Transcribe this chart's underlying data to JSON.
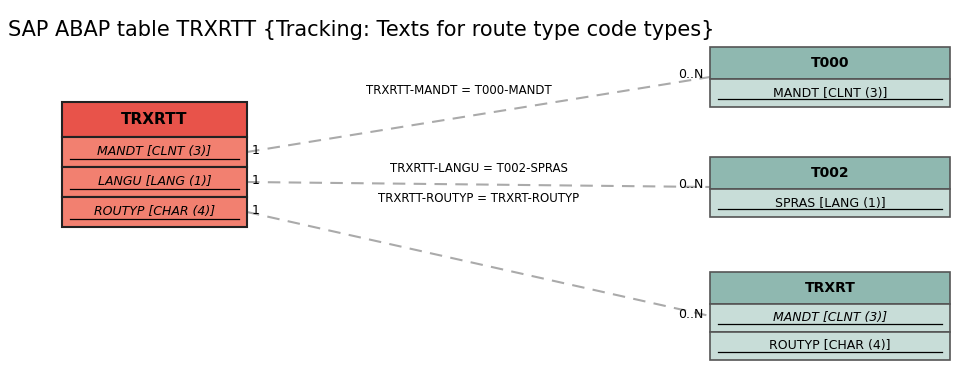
{
  "title": "SAP ABAP table TRXRTT {Tracking: Texts for route type code types}",
  "title_fontsize": 15,
  "background_color": "#ffffff",
  "left_table": {
    "name": "TRXRTT",
    "header_color": "#e8534a",
    "field_bg": "#f28070",
    "fields": [
      {
        "text": "MANDT [CLNT (3)]",
        "italic": true,
        "underline": true
      },
      {
        "text": "LANGU [LANG (1)]",
        "italic": true,
        "underline": true
      },
      {
        "text": "ROUTYP [CHAR (4)]",
        "italic": true,
        "underline": true
      }
    ]
  },
  "right_tables": [
    {
      "name": "T000",
      "header_color": "#8fb8b0",
      "field_bg": "#c8ddd8",
      "fields": [
        {
          "text": "MANDT [CLNT (3)]",
          "italic": false,
          "underline": true
        }
      ]
    },
    {
      "name": "T002",
      "header_color": "#8fb8b0",
      "field_bg": "#c8ddd8",
      "fields": [
        {
          "text": "SPRAS [LANG (1)]",
          "italic": false,
          "underline": true
        }
      ]
    },
    {
      "name": "TRXRT",
      "header_color": "#8fb8b0",
      "field_bg": "#c8ddd8",
      "fields": [
        {
          "text": "MANDT [CLNT (3)]",
          "italic": true,
          "underline": true
        },
        {
          "text": "ROUTYP [CHAR (4)]",
          "italic": false,
          "underline": true
        }
      ]
    }
  ],
  "line_label_t000": "TRXRTT-MANDT = T000-MANDT",
  "line_label_t002a": "TRXRTT-LANGU = T002-SPRAS",
  "line_label_t002b": "TRXRTT-ROUTYP = TRXRT-ROUTYP",
  "card_left": "1",
  "card_right": "0..N",
  "line_color": "#aaaaaa",
  "line_lw": 1.5
}
